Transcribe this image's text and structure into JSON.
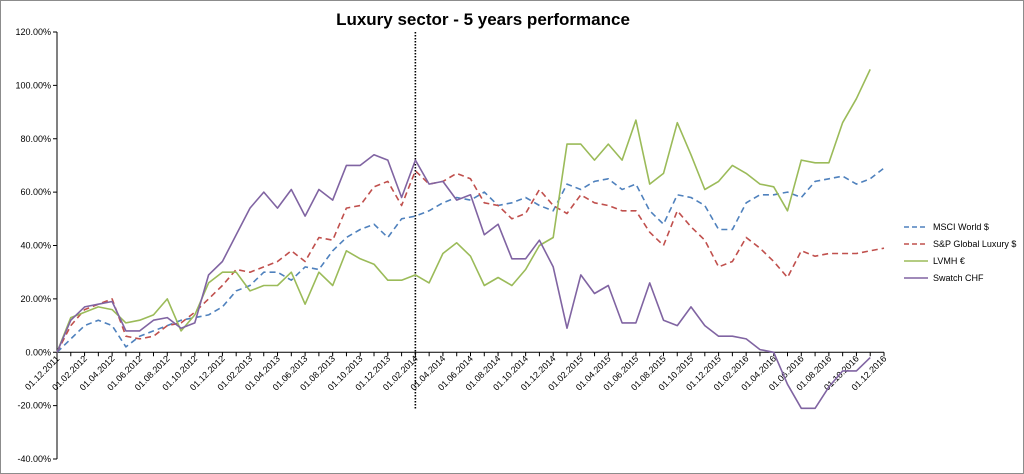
{
  "chart_data": {
    "type": "line",
    "title": "Luxury sector - 5 years performance",
    "xlabel": "",
    "ylabel": "",
    "ylim": [
      -40,
      120
    ],
    "ytick_labels": [
      "120.00%",
      "100.00%",
      "80.00%",
      "60.00%",
      "40.00%",
      "20.00%",
      "0.00%",
      "-20.00%",
      "-40.00%"
    ],
    "xtick_labels": [
      "01.12.2011",
      "01.02.2012",
      "01.04.2012",
      "01.06.2012",
      "01.08.2012",
      "01.10.2012",
      "01.12.2012",
      "01.02.2013",
      "01.04.2013",
      "01.06.2013",
      "01.08.2013",
      "01.10.2013",
      "01.12.2013",
      "01.02.2014",
      "01.04.2014",
      "01.06.2014",
      "01.08.2014",
      "01.10.2014",
      "01.12.2014",
      "01.02.2015",
      "01.04.2015",
      "01.06.2015",
      "01.08.2015",
      "01.10.2015",
      "01.12.2015",
      "01.02.2016",
      "01.04.2016",
      "01.06.2016",
      "01.08.2016",
      "01.10.2016",
      "01.12.2016"
    ],
    "marker_line_date": "01.02.2014",
    "legend_position": "right",
    "grid": false,
    "series": [
      {
        "name": "MSCI World $",
        "color": "#4f81bd",
        "dash": "dashed",
        "values": [
          0,
          5,
          10,
          12,
          10,
          2,
          6,
          8,
          10,
          12,
          13,
          14,
          17,
          23,
          25,
          30,
          30,
          27,
          32,
          31,
          38,
          43,
          46,
          48,
          43,
          50,
          51,
          53,
          56,
          58,
          57,
          60,
          55,
          56,
          58,
          55,
          53,
          63,
          61,
          64,
          65,
          61,
          63,
          53,
          48,
          59,
          58,
          55,
          46,
          46,
          56,
          59,
          59,
          60,
          58,
          64,
          65,
          66,
          63,
          65,
          69
        ]
      },
      {
        "name": "S&P Global Luxury $",
        "color": "#c0504d",
        "dash": "dashed",
        "values": [
          0,
          10,
          16,
          18,
          20,
          6,
          5,
          6,
          10,
          11,
          15,
          20,
          25,
          31,
          30,
          32,
          34,
          38,
          34,
          43,
          42,
          54,
          55,
          62,
          64,
          55,
          68,
          63,
          64,
          67,
          65,
          56,
          55,
          50,
          52,
          61,
          55,
          52,
          59,
          56,
          55,
          53,
          53,
          45,
          40,
          53,
          47,
          42,
          32,
          34,
          43,
          39,
          34,
          28,
          38,
          36,
          37,
          37,
          37,
          38,
          39
        ]
      },
      {
        "name": "LVMH €",
        "color": "#9bbb59",
        "dash": "solid",
        "values": [
          0,
          13,
          15,
          17,
          16,
          11,
          12,
          14,
          20,
          8,
          14,
          26,
          30,
          30,
          23,
          25,
          25,
          30,
          18,
          30,
          25,
          38,
          35,
          33,
          27,
          27,
          29,
          26,
          37,
          41,
          36,
          25,
          28,
          25,
          31,
          40,
          43,
          78,
          78,
          72,
          78,
          72,
          87,
          63,
          67,
          86,
          74,
          61,
          64,
          70,
          67,
          63,
          62,
          53,
          72,
          71,
          71,
          86,
          95,
          106
        ]
      },
      {
        "name": "Swatch CHF",
        "color": "#8064a2",
        "dash": "solid",
        "values": [
          0,
          12,
          17,
          18,
          19,
          8,
          8,
          12,
          13,
          9,
          11,
          29,
          34,
          44,
          54,
          60,
          54,
          61,
          51,
          61,
          57,
          70,
          70,
          74,
          72,
          58,
          72,
          63,
          64,
          57,
          59,
          44,
          48,
          35,
          35,
          42,
          32,
          9,
          29,
          22,
          25,
          11,
          11,
          26,
          12,
          10,
          17,
          10,
          6,
          6,
          5,
          1,
          0,
          -12,
          -21,
          -21,
          -13,
          -7,
          -7,
          -2
        ]
      }
    ]
  }
}
